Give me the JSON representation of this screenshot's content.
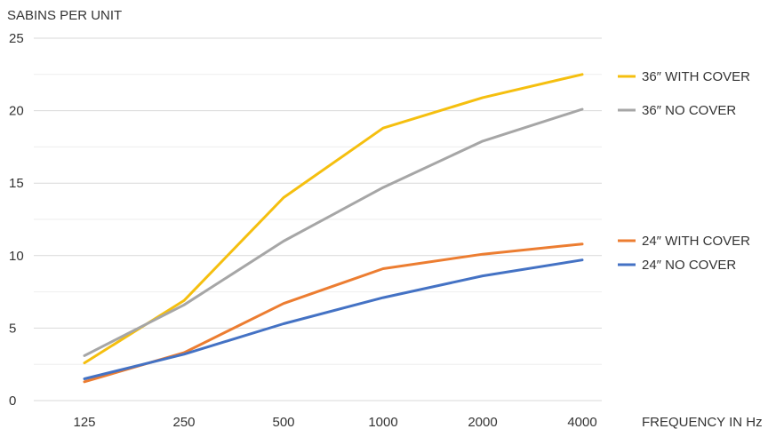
{
  "chart_data": {
    "type": "line",
    "ylabel": "SABINS PER UNIT",
    "xlabel": "FREQUENCY IN Hz",
    "categories": [
      "125",
      "250",
      "500",
      "1000",
      "2000",
      "4000"
    ],
    "ylim": [
      0,
      25
    ],
    "yticks": [
      "0",
      "5",
      "10",
      "15",
      "20",
      "25"
    ],
    "grid": true,
    "legend_position": "right",
    "series": [
      {
        "name": "36″ WITH COVER",
        "color": "#f5bf0f",
        "values": [
          2.6,
          6.9,
          14.0,
          18.8,
          20.9,
          22.5
        ]
      },
      {
        "name": "36″ NO COVER",
        "color": "#a6a6a6",
        "values": [
          3.1,
          6.6,
          11.0,
          14.7,
          17.9,
          20.1
        ]
      },
      {
        "name": "24″ WITH COVER",
        "color": "#ec7d31",
        "values": [
          1.3,
          3.3,
          6.7,
          9.1,
          10.1,
          10.8
        ]
      },
      {
        "name": "24″ NO COVER",
        "color": "#4472c4",
        "values": [
          1.5,
          3.2,
          5.3,
          7.1,
          8.6,
          9.7
        ]
      }
    ]
  }
}
